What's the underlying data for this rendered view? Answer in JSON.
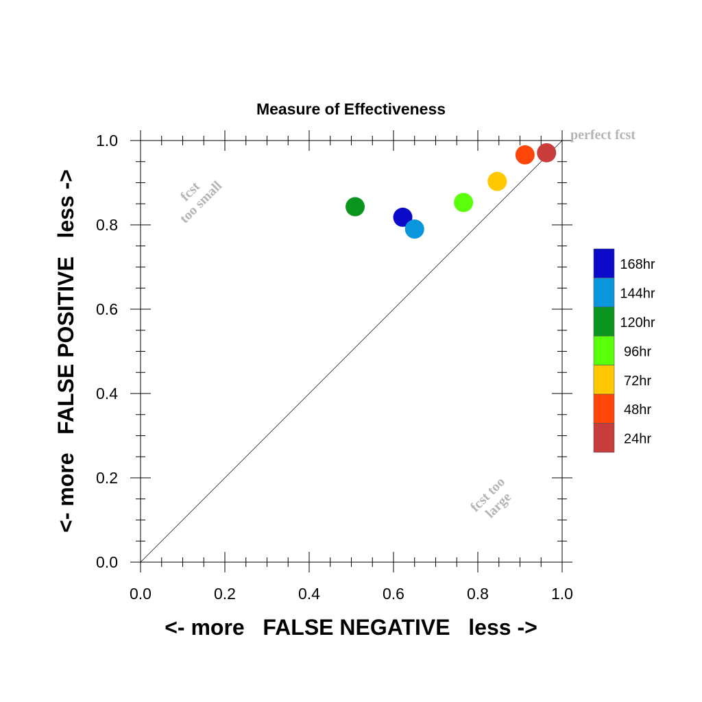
{
  "chart_data": {
    "type": "scatter",
    "title": "Measure of Effectiveness",
    "xlabel": "<- more   FALSE NEGATIVE   less ->",
    "ylabel": "<- more   FALSE POSITIVE   less ->",
    "xlim": [
      0.0,
      1.0
    ],
    "ylim": [
      0.0,
      1.0
    ],
    "xticks": [
      "0.0",
      "0.2",
      "0.4",
      "0.6",
      "0.8",
      "1.0"
    ],
    "yticks": [
      "0.0",
      "0.2",
      "0.4",
      "0.6",
      "0.8",
      "1.0"
    ],
    "grid": false,
    "diagonal_line": true,
    "legend_placement": "right",
    "annotations": {
      "perfect": "perfect fcst",
      "small_line1": "fcst",
      "small_line2": "too small",
      "large_line1": "fcst too",
      "large_line2": "large"
    },
    "points": [
      {
        "label": "168hr",
        "x": 0.622,
        "y": 0.818,
        "color": "#0a0ac8"
      },
      {
        "label": "144hr",
        "x": 0.65,
        "y": 0.79,
        "color": "#0a96dc"
      },
      {
        "label": "120hr",
        "x": 0.509,
        "y": 0.843,
        "color": "#0a961e"
      },
      {
        "label": "96hr",
        "x": 0.766,
        "y": 0.853,
        "color": "#5aff0a"
      },
      {
        "label": "72hr",
        "x": 0.846,
        "y": 0.903,
        "color": "#ffc800"
      },
      {
        "label": "48hr",
        "x": 0.912,
        "y": 0.966,
        "color": "#ff460a"
      },
      {
        "label": "24hr",
        "x": 0.963,
        "y": 0.971,
        "color": "#c83c3c"
      }
    ]
  }
}
